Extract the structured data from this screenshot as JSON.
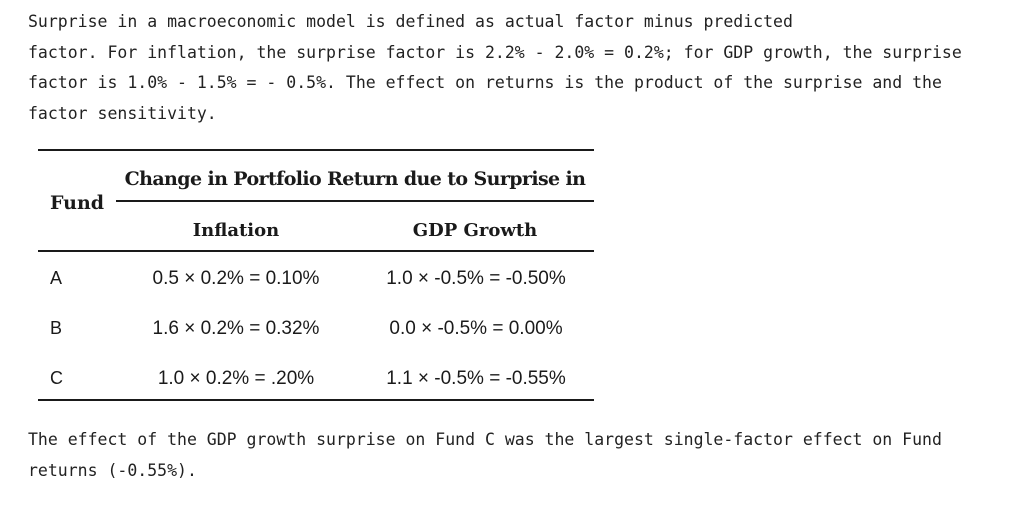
{
  "intro": {
    "lines": [
      "Surprise in a macroeconomic model is defined as actual factor minus predicted",
      "factor. For inflation, the surprise factor is 2.2% - 2.0% = 0.2%; for GDP growth, the surprise",
      "factor is 1.0% - 1.5% = - 0.5%. The effect on returns is the product of the surprise and the",
      "factor sensitivity."
    ]
  },
  "table": {
    "fund_header": "Fund",
    "span_header": "Change in Portfolio Return due to Surprise in",
    "col_inflation": "Inflation",
    "col_gdp": "GDP Growth",
    "rows": [
      {
        "fund": "A",
        "inflation": "0.5 × 0.2% = 0.10%",
        "gdp": "1.0 × -0.5% = -0.50%"
      },
      {
        "fund": "B",
        "inflation": "1.6 × 0.2% = 0.32%",
        "gdp": "0.0 × -0.5% = 0.00%"
      },
      {
        "fund": "C",
        "inflation": "1.0 × 0.2% = .20%",
        "gdp": "1.1 × -0.5% = -0.55%"
      }
    ]
  },
  "outro": {
    "lines": [
      "The effect of the GDP growth surprise on Fund C was the largest single-factor effect on Fund",
      "returns (-0.55%)."
    ]
  }
}
